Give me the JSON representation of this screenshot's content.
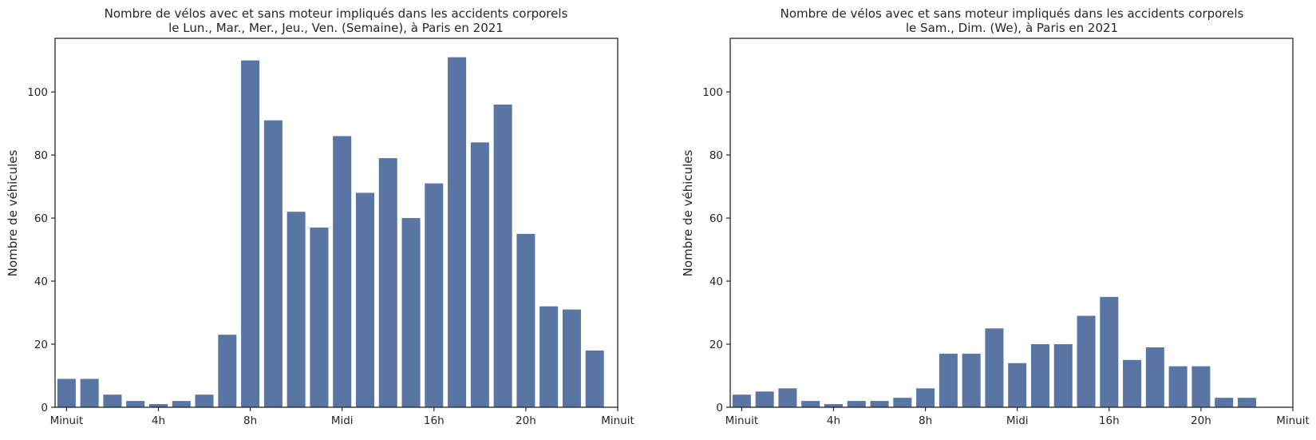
{
  "chart_data": [
    {
      "type": "bar",
      "title_line1": "Nombre de vélos avec et sans moteur impliqués dans les accidents corporels",
      "title_line2": "le Lun., Mar., Mer., Jeu., Ven. (Semaine), à Paris en 2021",
      "xlabel": "",
      "ylabel": "Nombre de véhicules",
      "categories": [
        0,
        1,
        2,
        3,
        4,
        5,
        6,
        7,
        8,
        9,
        10,
        11,
        12,
        13,
        14,
        15,
        16,
        17,
        18,
        19,
        20,
        21,
        22,
        23
      ],
      "values": [
        9,
        9,
        4,
        2,
        1,
        2,
        4,
        23,
        110,
        91,
        62,
        57,
        86,
        68,
        79,
        60,
        71,
        111,
        84,
        96,
        55,
        32,
        31,
        18
      ],
      "x_ticks": [
        0,
        4,
        8,
        12,
        16,
        20,
        24
      ],
      "x_tick_labels": [
        "Minuit",
        "4h",
        "8h",
        "Midi",
        "16h",
        "20h",
        "Minuit"
      ],
      "y_ticks": [
        0,
        20,
        40,
        60,
        80,
        100
      ],
      "ylim": [
        0,
        117
      ],
      "xlim": [
        -0.5,
        24
      ],
      "color": "#5875a4",
      "grid": false
    },
    {
      "type": "bar",
      "title_line1": "Nombre de vélos avec et sans moteur impliqués dans les accidents corporels",
      "title_line2": "le Sam., Dim. (We), à Paris en 2021",
      "xlabel": "",
      "ylabel": "Nombre de véhicules",
      "categories": [
        0,
        1,
        2,
        3,
        4,
        5,
        6,
        7,
        8,
        9,
        10,
        11,
        12,
        13,
        14,
        15,
        16,
        17,
        18,
        19,
        20,
        21,
        22,
        23
      ],
      "values": [
        4,
        5,
        6,
        2,
        1,
        2,
        2,
        3,
        6,
        17,
        17,
        25,
        14,
        20,
        20,
        29,
        35,
        15,
        19,
        13,
        13,
        3,
        3,
        0
      ],
      "x_ticks": [
        0,
        4,
        8,
        12,
        16,
        20,
        24
      ],
      "x_tick_labels": [
        "Minuit",
        "4h",
        "8h",
        "Midi",
        "16h",
        "20h",
        "Minuit"
      ],
      "y_ticks": [
        0,
        20,
        40,
        60,
        80,
        100
      ],
      "ylim": [
        0,
        117
      ],
      "xlim": [
        -0.5,
        24
      ],
      "color": "#5875a4",
      "grid": false
    }
  ]
}
